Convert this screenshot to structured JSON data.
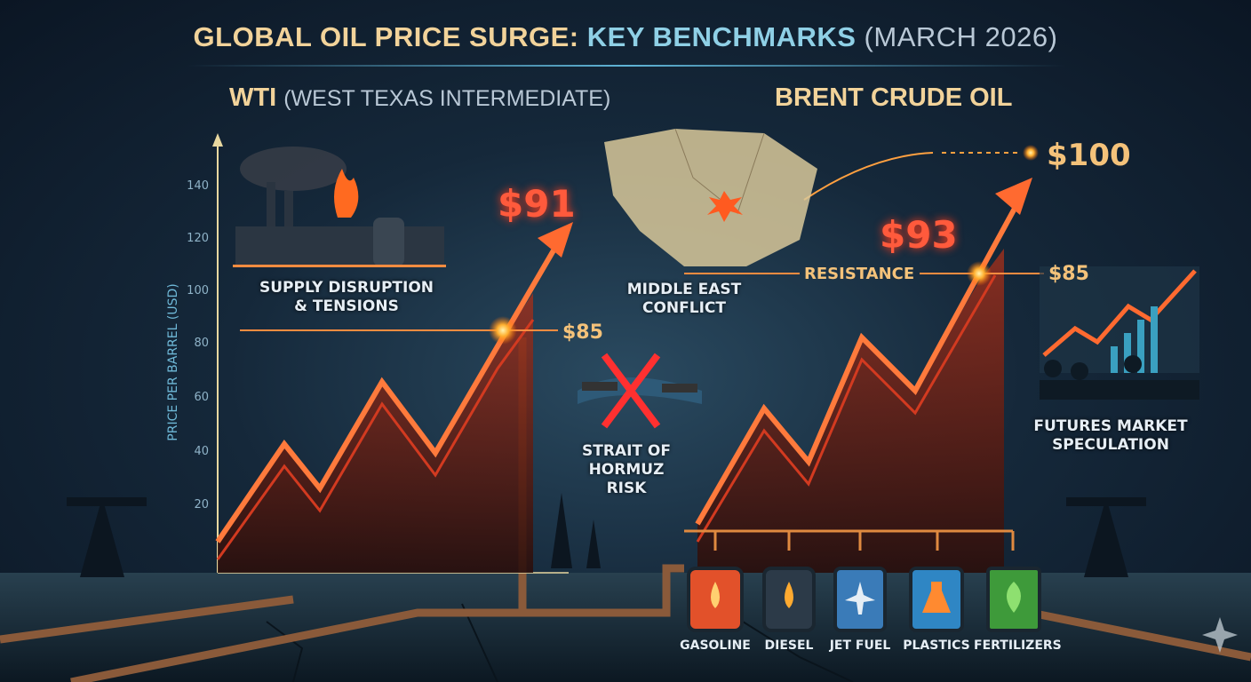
{
  "title": {
    "part1": "GLOBAL OIL PRICE SURGE:",
    "part2": "KEY BENCHMARKS",
    "part3": "(MARCH 2026)"
  },
  "wti": {
    "label": "WTI",
    "sublabel": "(WEST TEXAS INTERMEDIATE)",
    "price": "$91",
    "level": "$85"
  },
  "brent": {
    "label": "BRENT CRUDE OIL",
    "price": "$93",
    "level": "$85",
    "target": "$100",
    "resistance": "RESISTANCE"
  },
  "axis": {
    "title": "PRICE PER BARREL (USD)",
    "ticks": [
      "140",
      "120",
      "100",
      "80",
      "60",
      "40",
      "20"
    ]
  },
  "factors": {
    "supply": [
      "SUPPLY DISRUPTION",
      "& TENSIONS"
    ],
    "middle_east": [
      "MIDDLE EAST",
      "CONFLICT"
    ],
    "hormuz": [
      "STRAIT OF",
      "HORMUZ",
      "RISK"
    ],
    "futures": [
      "FUTURES MARKET",
      "SPECULATION"
    ]
  },
  "products": [
    {
      "label": "GASOLINE",
      "icon": "drop-icon",
      "color": "#e2512a"
    },
    {
      "label": "DIESEL",
      "icon": "drop-icon",
      "color": "#2c3a48"
    },
    {
      "label": "JET FUEL",
      "icon": "airplane-icon",
      "color": "#3a7bb8"
    },
    {
      "label": "PLASTICS",
      "icon": "flask-icon",
      "color": "#2f86c4"
    },
    {
      "label": "FERTILIZERS",
      "icon": "leaf-icon",
      "color": "#3e9a3a"
    }
  ],
  "colors": {
    "accent": "#ff5a3c",
    "gold": "#f2d39a",
    "cyan": "#8fd0e6",
    "background": "#15283a"
  }
}
